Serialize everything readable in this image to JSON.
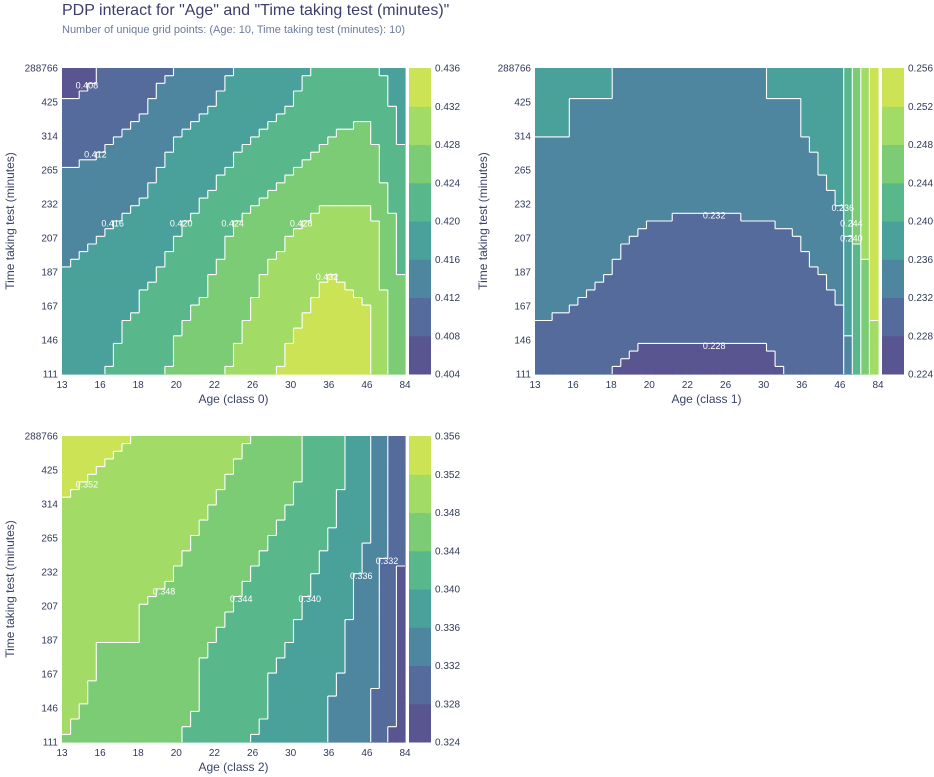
{
  "title": "PDP interact for \"Age\" and \"Time taking test (minutes)\"",
  "subtitle": "Number of unique grid points: (Age: 10, Time taking test (minutes): 10)",
  "colors": {
    "palette": [
      "#5b4a8b",
      "#55679a",
      "#4e8aa0",
      "#47ae98",
      "#74c977",
      "#a9df63",
      "#dfe54c"
    ],
    "contour_line": "#ffffff"
  },
  "chart_data": [
    {
      "type": "heatmap",
      "xlabel": "Age (class 0)",
      "ylabel": "Time taking test (minutes)",
      "x_ticks": [
        "13",
        "16",
        "18",
        "20",
        "22",
        "26",
        "30",
        "36",
        "46",
        "84"
      ],
      "y_ticks": [
        "111",
        "146",
        "167",
        "187",
        "207",
        "232",
        "265",
        "314",
        "425",
        "288766"
      ],
      "colorbar_ticks": [
        "0.404",
        "0.408",
        "0.412",
        "0.416",
        "0.420",
        "0.424",
        "0.428",
        "0.432",
        "0.436"
      ],
      "vmin": 0.404,
      "vmax": 0.436,
      "contour_labels": [
        "0.408",
        "0.412",
        "0.416",
        "0.420",
        "0.424",
        "0.428",
        "0.432"
      ],
      "values": [
        [
          0.419,
          0.42,
          0.421,
          0.425,
          0.427,
          0.43,
          0.433,
          0.435,
          0.434,
          0.425
        ],
        [
          0.418,
          0.419,
          0.421,
          0.424,
          0.426,
          0.429,
          0.432,
          0.434,
          0.433,
          0.425
        ],
        [
          0.418,
          0.419,
          0.42,
          0.423,
          0.425,
          0.428,
          0.431,
          0.433,
          0.432,
          0.424
        ],
        [
          0.416,
          0.417,
          0.419,
          0.421,
          0.424,
          0.427,
          0.43,
          0.432,
          0.431,
          0.423
        ],
        [
          0.415,
          0.416,
          0.418,
          0.42,
          0.423,
          0.426,
          0.428,
          0.43,
          0.431,
          0.422
        ],
        [
          0.413,
          0.414,
          0.416,
          0.418,
          0.421,
          0.424,
          0.426,
          0.428,
          0.428,
          0.421
        ],
        [
          0.412,
          0.413,
          0.415,
          0.417,
          0.419,
          0.422,
          0.424,
          0.426,
          0.426,
          0.42
        ],
        [
          0.41,
          0.411,
          0.413,
          0.416,
          0.418,
          0.42,
          0.422,
          0.424,
          0.425,
          0.419
        ],
        [
          0.408,
          0.409,
          0.411,
          0.414,
          0.416,
          0.418,
          0.42,
          0.422,
          0.423,
          0.418
        ],
        [
          0.406,
          0.408,
          0.41,
          0.412,
          0.415,
          0.417,
          0.419,
          0.421,
          0.422,
          0.417
        ]
      ]
    },
    {
      "type": "heatmap",
      "xlabel": "Age (class 1)",
      "ylabel": "Time taking test (minutes)",
      "x_ticks": [
        "13",
        "16",
        "18",
        "20",
        "22",
        "26",
        "30",
        "36",
        "46",
        "84"
      ],
      "y_ticks": [
        "111",
        "146",
        "167",
        "187",
        "207",
        "232",
        "265",
        "314",
        "425",
        "288766"
      ],
      "colorbar_ticks": [
        "0.224",
        "0.228",
        "0.232",
        "0.236",
        "0.240",
        "0.244",
        "0.248",
        "0.252",
        "0.256"
      ],
      "vmin": 0.224,
      "vmax": 0.256,
      "contour_labels": [
        "0.228",
        "0.232",
        "0.236",
        "0.240",
        "0.244"
      ],
      "values": [
        [
          0.23,
          0.229,
          0.228,
          0.227,
          0.227,
          0.227,
          0.227,
          0.229,
          0.23,
          0.254
        ],
        [
          0.231,
          0.23,
          0.229,
          0.228,
          0.228,
          0.228,
          0.228,
          0.229,
          0.231,
          0.254
        ],
        [
          0.233,
          0.232,
          0.231,
          0.23,
          0.229,
          0.229,
          0.229,
          0.23,
          0.232,
          0.255
        ],
        [
          0.234,
          0.233,
          0.232,
          0.23,
          0.23,
          0.23,
          0.23,
          0.231,
          0.233,
          0.255
        ],
        [
          0.234,
          0.234,
          0.233,
          0.231,
          0.23,
          0.23,
          0.231,
          0.232,
          0.236,
          0.255
        ],
        [
          0.235,
          0.235,
          0.234,
          0.233,
          0.233,
          0.233,
          0.233,
          0.234,
          0.236,
          0.255
        ],
        [
          0.235,
          0.235,
          0.235,
          0.234,
          0.234,
          0.234,
          0.234,
          0.235,
          0.237,
          0.255
        ],
        [
          0.236,
          0.236,
          0.235,
          0.235,
          0.235,
          0.235,
          0.235,
          0.236,
          0.237,
          0.255
        ],
        [
          0.237,
          0.236,
          0.236,
          0.235,
          0.235,
          0.235,
          0.236,
          0.236,
          0.238,
          0.255
        ],
        [
          0.237,
          0.237,
          0.236,
          0.236,
          0.236,
          0.236,
          0.236,
          0.237,
          0.238,
          0.255
        ]
      ]
    },
    {
      "type": "heatmap",
      "xlabel": "Age (class 2)",
      "ylabel": "Time taking test (minutes)",
      "x_ticks": [
        "13",
        "16",
        "18",
        "20",
        "22",
        "26",
        "30",
        "36",
        "46",
        "84"
      ],
      "y_ticks": [
        "111",
        "146",
        "167",
        "187",
        "207",
        "232",
        "265",
        "314",
        "425",
        "288766"
      ],
      "colorbar_ticks": [
        "0.324",
        "0.328",
        "0.332",
        "0.336",
        "0.340",
        "0.344",
        "0.348",
        "0.352",
        "0.356"
      ],
      "vmin": 0.324,
      "vmax": 0.356,
      "contour_labels": [
        "0.332",
        "0.336",
        "0.340",
        "0.344",
        "0.348",
        "0.352"
      ],
      "values": [
        [
          0.348,
          0.346,
          0.346,
          0.344,
          0.342,
          0.34,
          0.338,
          0.336,
          0.333,
          0.325
        ],
        [
          0.349,
          0.347,
          0.346,
          0.345,
          0.343,
          0.341,
          0.339,
          0.336,
          0.333,
          0.326
        ],
        [
          0.349,
          0.348,
          0.347,
          0.345,
          0.343,
          0.341,
          0.339,
          0.337,
          0.334,
          0.326
        ],
        [
          0.349,
          0.348,
          0.348,
          0.346,
          0.344,
          0.342,
          0.34,
          0.337,
          0.334,
          0.326
        ],
        [
          0.35,
          0.349,
          0.348,
          0.347,
          0.345,
          0.343,
          0.341,
          0.338,
          0.335,
          0.327
        ],
        [
          0.35,
          0.349,
          0.349,
          0.348,
          0.346,
          0.344,
          0.342,
          0.339,
          0.335,
          0.327
        ],
        [
          0.351,
          0.35,
          0.349,
          0.349,
          0.347,
          0.345,
          0.343,
          0.34,
          0.336,
          0.328
        ],
        [
          0.352,
          0.35,
          0.35,
          0.349,
          0.348,
          0.346,
          0.344,
          0.341,
          0.337,
          0.328
        ],
        [
          0.354,
          0.352,
          0.35,
          0.35,
          0.349,
          0.347,
          0.345,
          0.342,
          0.337,
          0.328
        ],
        [
          0.355,
          0.354,
          0.352,
          0.35,
          0.349,
          0.348,
          0.345,
          0.342,
          0.338,
          0.329
        ]
      ]
    }
  ]
}
